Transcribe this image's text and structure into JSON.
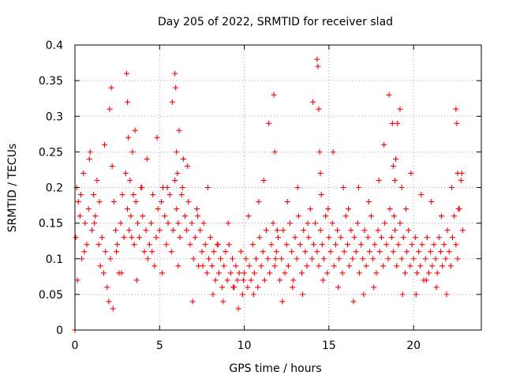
{
  "chart_data": {
    "type": "scatter",
    "title": "Day 205 of 2022, SRMTID for receiver slad",
    "xlabel": "GPS time / hours",
    "ylabel": "SRMTID / TECUs",
    "xlim": [
      0,
      24
    ],
    "ylim": [
      0,
      0.4
    ],
    "xticks": [
      0,
      5,
      10,
      15,
      20
    ],
    "xtick_labels": [
      "0",
      "5",
      "10",
      "15",
      "20"
    ],
    "yticks": [
      0,
      0.05,
      0.1,
      0.15,
      0.2,
      0.25,
      0.3,
      0.35,
      0.4
    ],
    "ytick_labels": [
      "0",
      "0.05",
      "0.1",
      "0.15",
      "0.2",
      "0.25",
      "0.3",
      "0.35",
      "0.4"
    ],
    "grid": true,
    "marker": "plus",
    "marker_color": "#ff0000",
    "series": [
      {
        "name": "SRMTID",
        "x": [
          0.0,
          0.05,
          0.1,
          0.2,
          0.3,
          0.4,
          0.5,
          0.6,
          0.7,
          0.8,
          0.9,
          1.0,
          1.1,
          1.2,
          1.3,
          1.4,
          1.5,
          1.6,
          1.7,
          1.8,
          1.9,
          2.0,
          2.1,
          2.2,
          2.3,
          2.4,
          2.5,
          2.6,
          2.7,
          2.8,
          2.9,
          3.0,
          3.1,
          3.2,
          3.3,
          3.4,
          3.5,
          3.6,
          3.7,
          3.8,
          3.9,
          4.0,
          4.1,
          4.2,
          4.3,
          4.4,
          4.5,
          4.6,
          4.7,
          4.8,
          4.9,
          5.0,
          5.1,
          5.2,
          5.3,
          5.4,
          5.5,
          5.6,
          5.7,
          5.8,
          5.9,
          6.0,
          6.1,
          6.2,
          6.3,
          6.4,
          6.5,
          6.6,
          6.7,
          6.8,
          6.9,
          7.0,
          7.1,
          7.2,
          7.3,
          7.4,
          7.5,
          7.6,
          7.7,
          7.8,
          7.9,
          8.0,
          8.1,
          8.2,
          8.3,
          8.4,
          8.5,
          8.6,
          8.7,
          8.8,
          8.9,
          9.0,
          9.1,
          9.2,
          9.3,
          9.4,
          9.5,
          9.6,
          9.7,
          9.8,
          9.9,
          10.0,
          10.1,
          10.2,
          10.3,
          10.4,
          10.5,
          10.6,
          10.7,
          10.8,
          10.9,
          11.0,
          11.1,
          11.2,
          11.3,
          11.4,
          11.5,
          11.6,
          11.7,
          11.8,
          11.9,
          12.0,
          12.1,
          12.2,
          12.3,
          12.4,
          12.5,
          12.6,
          12.7,
          12.8,
          12.9,
          13.0,
          13.1,
          13.2,
          13.3,
          13.4,
          13.5,
          13.6,
          13.7,
          13.8,
          13.9,
          14.0,
          14.1,
          14.2,
          14.3,
          14.4,
          14.5,
          14.6,
          14.7,
          14.8,
          14.9,
          15.0,
          15.1,
          15.2,
          15.3,
          15.4,
          15.5,
          15.6,
          15.7,
          15.8,
          15.9,
          16.0,
          16.1,
          16.2,
          16.3,
          16.4,
          16.5,
          16.6,
          16.7,
          16.8,
          16.9,
          17.0,
          17.1,
          17.2,
          17.3,
          17.4,
          17.5,
          17.6,
          17.7,
          17.8,
          17.9,
          18.0,
          18.1,
          18.2,
          18.3,
          18.4,
          18.5,
          18.6,
          18.7,
          18.8,
          18.9,
          19.0,
          19.1,
          19.2,
          19.3,
          19.4,
          19.5,
          19.6,
          19.7,
          19.8,
          19.9,
          20.0,
          20.1,
          20.2,
          20.3,
          20.4,
          20.5,
          20.6,
          20.7,
          20.8,
          20.9,
          21.0,
          21.1,
          21.2,
          21.3,
          21.4,
          21.5,
          21.6,
          21.7,
          21.8,
          21.9,
          22.0,
          22.1,
          22.2,
          22.3,
          22.4,
          22.5,
          22.6,
          22.7,
          22.8,
          22.9,
          0.15,
          0.35,
          0.55,
          0.85,
          1.15,
          1.45,
          1.75,
          2.05,
          2.15,
          2.25,
          2.45,
          2.75,
          3.05,
          3.1,
          3.15,
          3.25,
          3.35,
          3.45,
          3.55,
          3.65,
          3.95,
          4.25,
          4.55,
          4.85,
          5.15,
          5.45,
          5.75,
          5.9,
          5.95,
          6.0,
          6.05,
          6.1,
          6.15,
          6.35,
          6.65,
          6.95,
          7.25,
          7.55,
          7.85,
          8.15,
          8.45,
          8.75,
          9.05,
          9.35,
          9.65,
          9.95,
          10.25,
          10.55,
          10.85,
          11.15,
          11.45,
          11.75,
          11.8,
          11.85,
          11.95,
          12.25,
          12.55,
          12.85,
          13.15,
          13.45,
          13.75,
          14.05,
          14.3,
          14.35,
          14.4,
          14.45,
          14.5,
          14.55,
          14.65,
          14.95,
          15.25,
          15.55,
          15.85,
          16.15,
          16.45,
          16.75,
          17.05,
          17.35,
          17.65,
          17.95,
          18.25,
          18.55,
          18.75,
          18.8,
          18.85,
          18.9,
          18.95,
          19.05,
          19.2,
          19.3,
          19.35,
          19.55,
          19.85,
          20.15,
          20.45,
          20.75,
          21.05,
          21.35,
          21.65,
          21.95,
          22.25,
          22.5,
          22.55,
          22.6,
          22.65,
          22.85
        ],
        "y": [
          0.0,
          0.13,
          0.2,
          0.18,
          0.16,
          0.1,
          0.22,
          0.15,
          0.12,
          0.17,
          0.25,
          0.14,
          0.19,
          0.16,
          0.21,
          0.12,
          0.09,
          0.13,
          0.08,
          0.11,
          0.06,
          0.04,
          0.1,
          0.23,
          0.18,
          0.14,
          0.12,
          0.08,
          0.15,
          0.19,
          0.13,
          0.22,
          0.17,
          0.14,
          0.16,
          0.25,
          0.12,
          0.18,
          0.15,
          0.13,
          0.2,
          0.16,
          0.11,
          0.14,
          0.1,
          0.12,
          0.15,
          0.19,
          0.09,
          0.13,
          0.17,
          0.14,
          0.18,
          0.2,
          0.16,
          0.12,
          0.15,
          0.19,
          0.11,
          0.14,
          0.21,
          0.17,
          0.15,
          0.13,
          0.19,
          0.24,
          0.16,
          0.14,
          0.18,
          0.12,
          0.15,
          0.1,
          0.13,
          0.17,
          0.09,
          0.14,
          0.11,
          0.15,
          0.12,
          0.08,
          0.1,
          0.13,
          0.09,
          0.11,
          0.07,
          0.12,
          0.08,
          0.1,
          0.06,
          0.09,
          0.11,
          0.07,
          0.12,
          0.08,
          0.1,
          0.06,
          0.09,
          0.07,
          0.08,
          0.11,
          0.05,
          0.08,
          0.1,
          0.06,
          0.09,
          0.07,
          0.12,
          0.08,
          0.1,
          0.06,
          0.13,
          0.09,
          0.11,
          0.07,
          0.14,
          0.1,
          0.08,
          0.12,
          0.15,
          0.09,
          0.11,
          0.13,
          0.07,
          0.1,
          0.14,
          0.08,
          0.12,
          0.09,
          0.15,
          0.11,
          0.07,
          0.13,
          0.1,
          0.16,
          0.12,
          0.08,
          0.14,
          0.11,
          0.09,
          0.13,
          0.17,
          0.1,
          0.12,
          0.15,
          0.11,
          0.09,
          0.14,
          0.12,
          0.1,
          0.16,
          0.08,
          0.13,
          0.11,
          0.15,
          0.09,
          0.12,
          0.14,
          0.1,
          0.13,
          0.08,
          0.11,
          0.16,
          0.12,
          0.09,
          0.14,
          0.1,
          0.13,
          0.11,
          0.15,
          0.08,
          0.12,
          0.1,
          0.14,
          0.09,
          0.13,
          0.11,
          0.16,
          0.1,
          0.12,
          0.08,
          0.14,
          0.11,
          0.13,
          0.09,
          0.15,
          0.12,
          0.1,
          0.17,
          0.13,
          0.11,
          0.14,
          0.09,
          0.12,
          0.15,
          0.1,
          0.13,
          0.08,
          0.11,
          0.14,
          0.09,
          0.12,
          0.1,
          0.13,
          0.08,
          0.11,
          0.09,
          0.12,
          0.07,
          0.1,
          0.13,
          0.08,
          0.11,
          0.09,
          0.12,
          0.1,
          0.08,
          0.13,
          0.11,
          0.09,
          0.12,
          0.1,
          0.14,
          0.11,
          0.09,
          0.13,
          0.16,
          0.12,
          0.1,
          0.17,
          0.21,
          0.14,
          0.07,
          0.19,
          0.11,
          0.24,
          0.15,
          0.18,
          0.26,
          0.31,
          0.34,
          0.03,
          0.11,
          0.08,
          0.36,
          0.32,
          0.27,
          0.21,
          0.13,
          0.19,
          0.28,
          0.07,
          0.2,
          0.24,
          0.11,
          0.27,
          0.08,
          0.2,
          0.32,
          0.36,
          0.34,
          0.25,
          0.22,
          0.09,
          0.28,
          0.2,
          0.23,
          0.04,
          0.16,
          0.09,
          0.2,
          0.05,
          0.12,
          0.04,
          0.15,
          0.06,
          0.03,
          0.07,
          0.16,
          0.05,
          0.18,
          0.21,
          0.29,
          0.33,
          0.25,
          0.1,
          0.14,
          0.04,
          0.18,
          0.06,
          0.2,
          0.05,
          0.15,
          0.32,
          0.38,
          0.37,
          0.31,
          0.25,
          0.22,
          0.19,
          0.07,
          0.17,
          0.25,
          0.06,
          0.2,
          0.17,
          0.04,
          0.2,
          0.05,
          0.18,
          0.06,
          0.21,
          0.26,
          0.33,
          0.29,
          0.23,
          0.16,
          0.21,
          0.24,
          0.29,
          0.31,
          0.2,
          0.05,
          0.17,
          0.22,
          0.05,
          0.19,
          0.07,
          0.18,
          0.06,
          0.16,
          0.05,
          0.2,
          0.31,
          0.29,
          0.22,
          0.17,
          0.22
        ]
      }
    ]
  }
}
